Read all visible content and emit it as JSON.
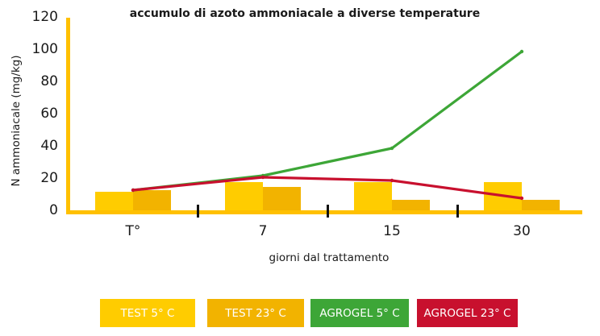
{
  "chart_data": {
    "type": "bar+line",
    "title": "accumulo di azoto ammoniacale a diverse temperature",
    "xlabel": "giorni dal trattamento",
    "ylabel": "N ammoniacale (mg/kg)",
    "categories": [
      "T°",
      "7",
      "15",
      "30"
    ],
    "ylim": [
      0,
      120
    ],
    "yticks": [
      "0",
      "20",
      "40",
      "60",
      "80",
      "100",
      "120"
    ],
    "grid": false,
    "legend_position": "bottom",
    "series": [
      {
        "name": "TEST 5° C",
        "kind": "bar",
        "color": "#FFCC00",
        "values": [
          11,
          17,
          17,
          17
        ]
      },
      {
        "name": "TEST 23° C",
        "kind": "bar",
        "color": "#F2B300",
        "values": [
          12,
          14,
          6,
          6
        ]
      },
      {
        "name": "AGROGEL 5° C",
        "kind": "line",
        "color": "#3DA637",
        "values": [
          12,
          21,
          38,
          98
        ]
      },
      {
        "name": "AGROGEL 23° C",
        "kind": "line",
        "color": "#C8102E",
        "values": [
          12,
          20,
          18,
          7
        ]
      }
    ],
    "axis_color": "#FFC000"
  }
}
